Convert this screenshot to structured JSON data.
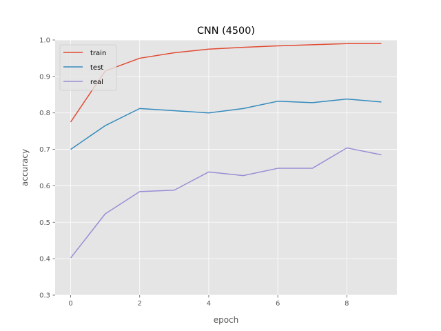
{
  "chart_data": {
    "type": "line",
    "title": "CNN (4500)",
    "xlabel": "epoch",
    "ylabel": "accuracy",
    "x": [
      0,
      1,
      2,
      3,
      4,
      5,
      6,
      7,
      8,
      9
    ],
    "xticks": [
      0,
      2,
      4,
      6,
      8
    ],
    "yticks": [
      0.3,
      0.4,
      0.5,
      0.6,
      0.7,
      0.8,
      0.9,
      1.0
    ],
    "ytick_labels": [
      "0.3",
      "0.4",
      "0.5",
      "0.6",
      "0.7",
      "0.8",
      "0.9",
      "1.0"
    ],
    "xlim": [
      -0.45,
      9.45
    ],
    "ylim": [
      0.3,
      1.0
    ],
    "grid": true,
    "legend_position": "upper-left",
    "series": [
      {
        "name": "train",
        "color": "#E24A33",
        "values": [
          0.775,
          0.915,
          0.95,
          0.965,
          0.975,
          0.98,
          0.984,
          0.987,
          0.99,
          0.99
        ]
      },
      {
        "name": "test",
        "color": "#348ABD",
        "values": [
          0.7,
          0.765,
          0.812,
          0.806,
          0.8,
          0.812,
          0.832,
          0.828,
          0.838,
          0.83
        ]
      },
      {
        "name": "real",
        "color": "#988ED5",
        "values": [
          0.402,
          0.523,
          0.584,
          0.588,
          0.638,
          0.628,
          0.648,
          0.648,
          0.704,
          0.685
        ]
      }
    ]
  }
}
